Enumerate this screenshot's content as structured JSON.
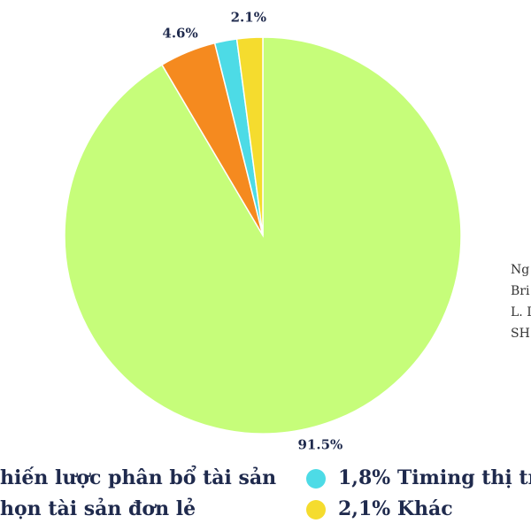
{
  "chart_data": {
    "type": "pie",
    "categories": [
      "hiến lược phân bổ tài sản",
      "họn tài sản đơn lẻ",
      "1,8% Timing thị tr",
      "2,1% Khác"
    ],
    "values": [
      91.5,
      4.6,
      1.8,
      2.1
    ],
    "value_labels": [
      "91.5%",
      "4.6%",
      null,
      "2.1%"
    ],
    "colors": [
      "#c6fd7a",
      "#f58a1f",
      "#4ddbe6",
      "#f5dc2e"
    ],
    "source": [
      "Ng",
      "Bri",
      "L. I",
      "SH"
    ]
  }
}
